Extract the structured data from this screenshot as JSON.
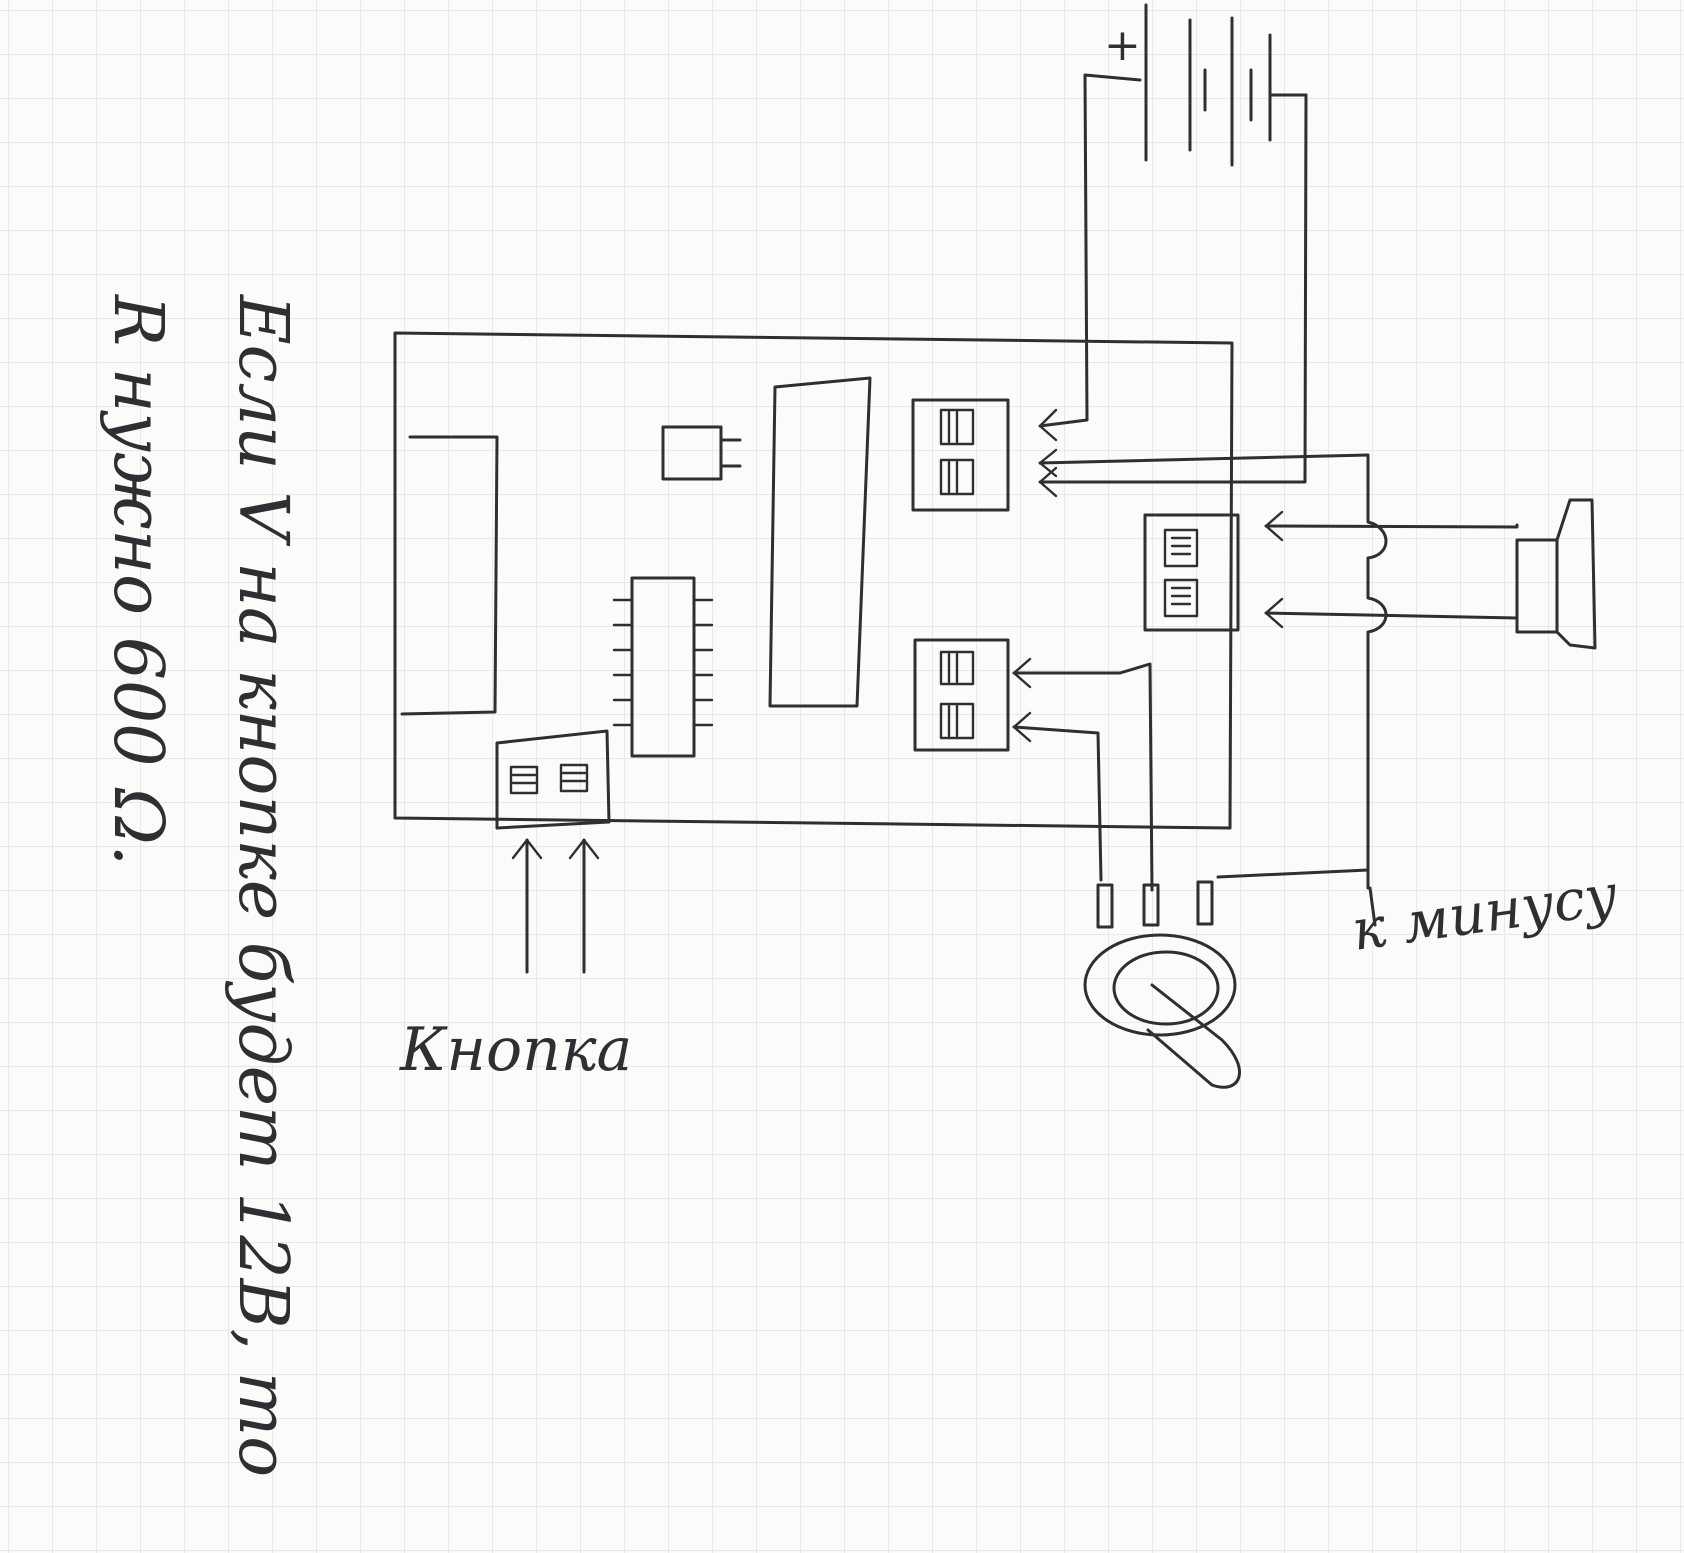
{
  "labels": {
    "plus_sign": "+",
    "button_label": "Кнопка",
    "ground_label": "к минусу",
    "note_line_1": "Если V на кнопке будет 12В, то",
    "note_line_2": "R нужно 600 Ω."
  },
  "colors": {
    "ink": "#2f2f33",
    "paper": "#fbfbfa",
    "grid": "#e6e8ea"
  }
}
